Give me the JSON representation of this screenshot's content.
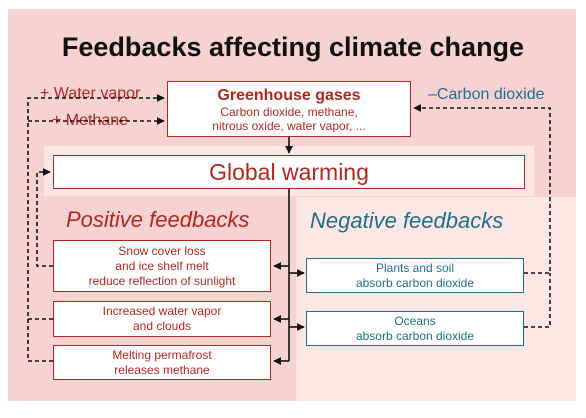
{
  "title": "Feedbacks affecting climate change",
  "greenhouse": {
    "heading": "Greenhouse gases",
    "line1": "Carbon dioxide, methane,",
    "line2": "nitrous oxide, water vapor, ..."
  },
  "left_labels": {
    "water_vapor": "+ Water vapor",
    "methane": "+ Methane"
  },
  "right_label": "–Carbon dioxide",
  "global_warming": "Global warming",
  "positive": {
    "title": "Positive feedbacks",
    "items": [
      {
        "line1": "Snow cover loss",
        "line2": "and ice shelf melt",
        "line3": "reduce reflection of sunlight"
      },
      {
        "line1": "Increased water vapor",
        "line2": "and clouds"
      },
      {
        "line1": "Melting permafrost",
        "line2": "releases methane"
      }
    ]
  },
  "negative": {
    "title": "Negative feedbacks",
    "items": [
      {
        "line1": "Plants and soil",
        "line2": "absorb carbon dioxide"
      },
      {
        "line1": "Oceans",
        "line2": "absorb carbon dioxide"
      }
    ]
  },
  "colors": {
    "positive": "#b3271e",
    "negative": "#1e6f8c",
    "panel_outer": "#f7d2d2",
    "panel_inner": "#fde6e6"
  }
}
